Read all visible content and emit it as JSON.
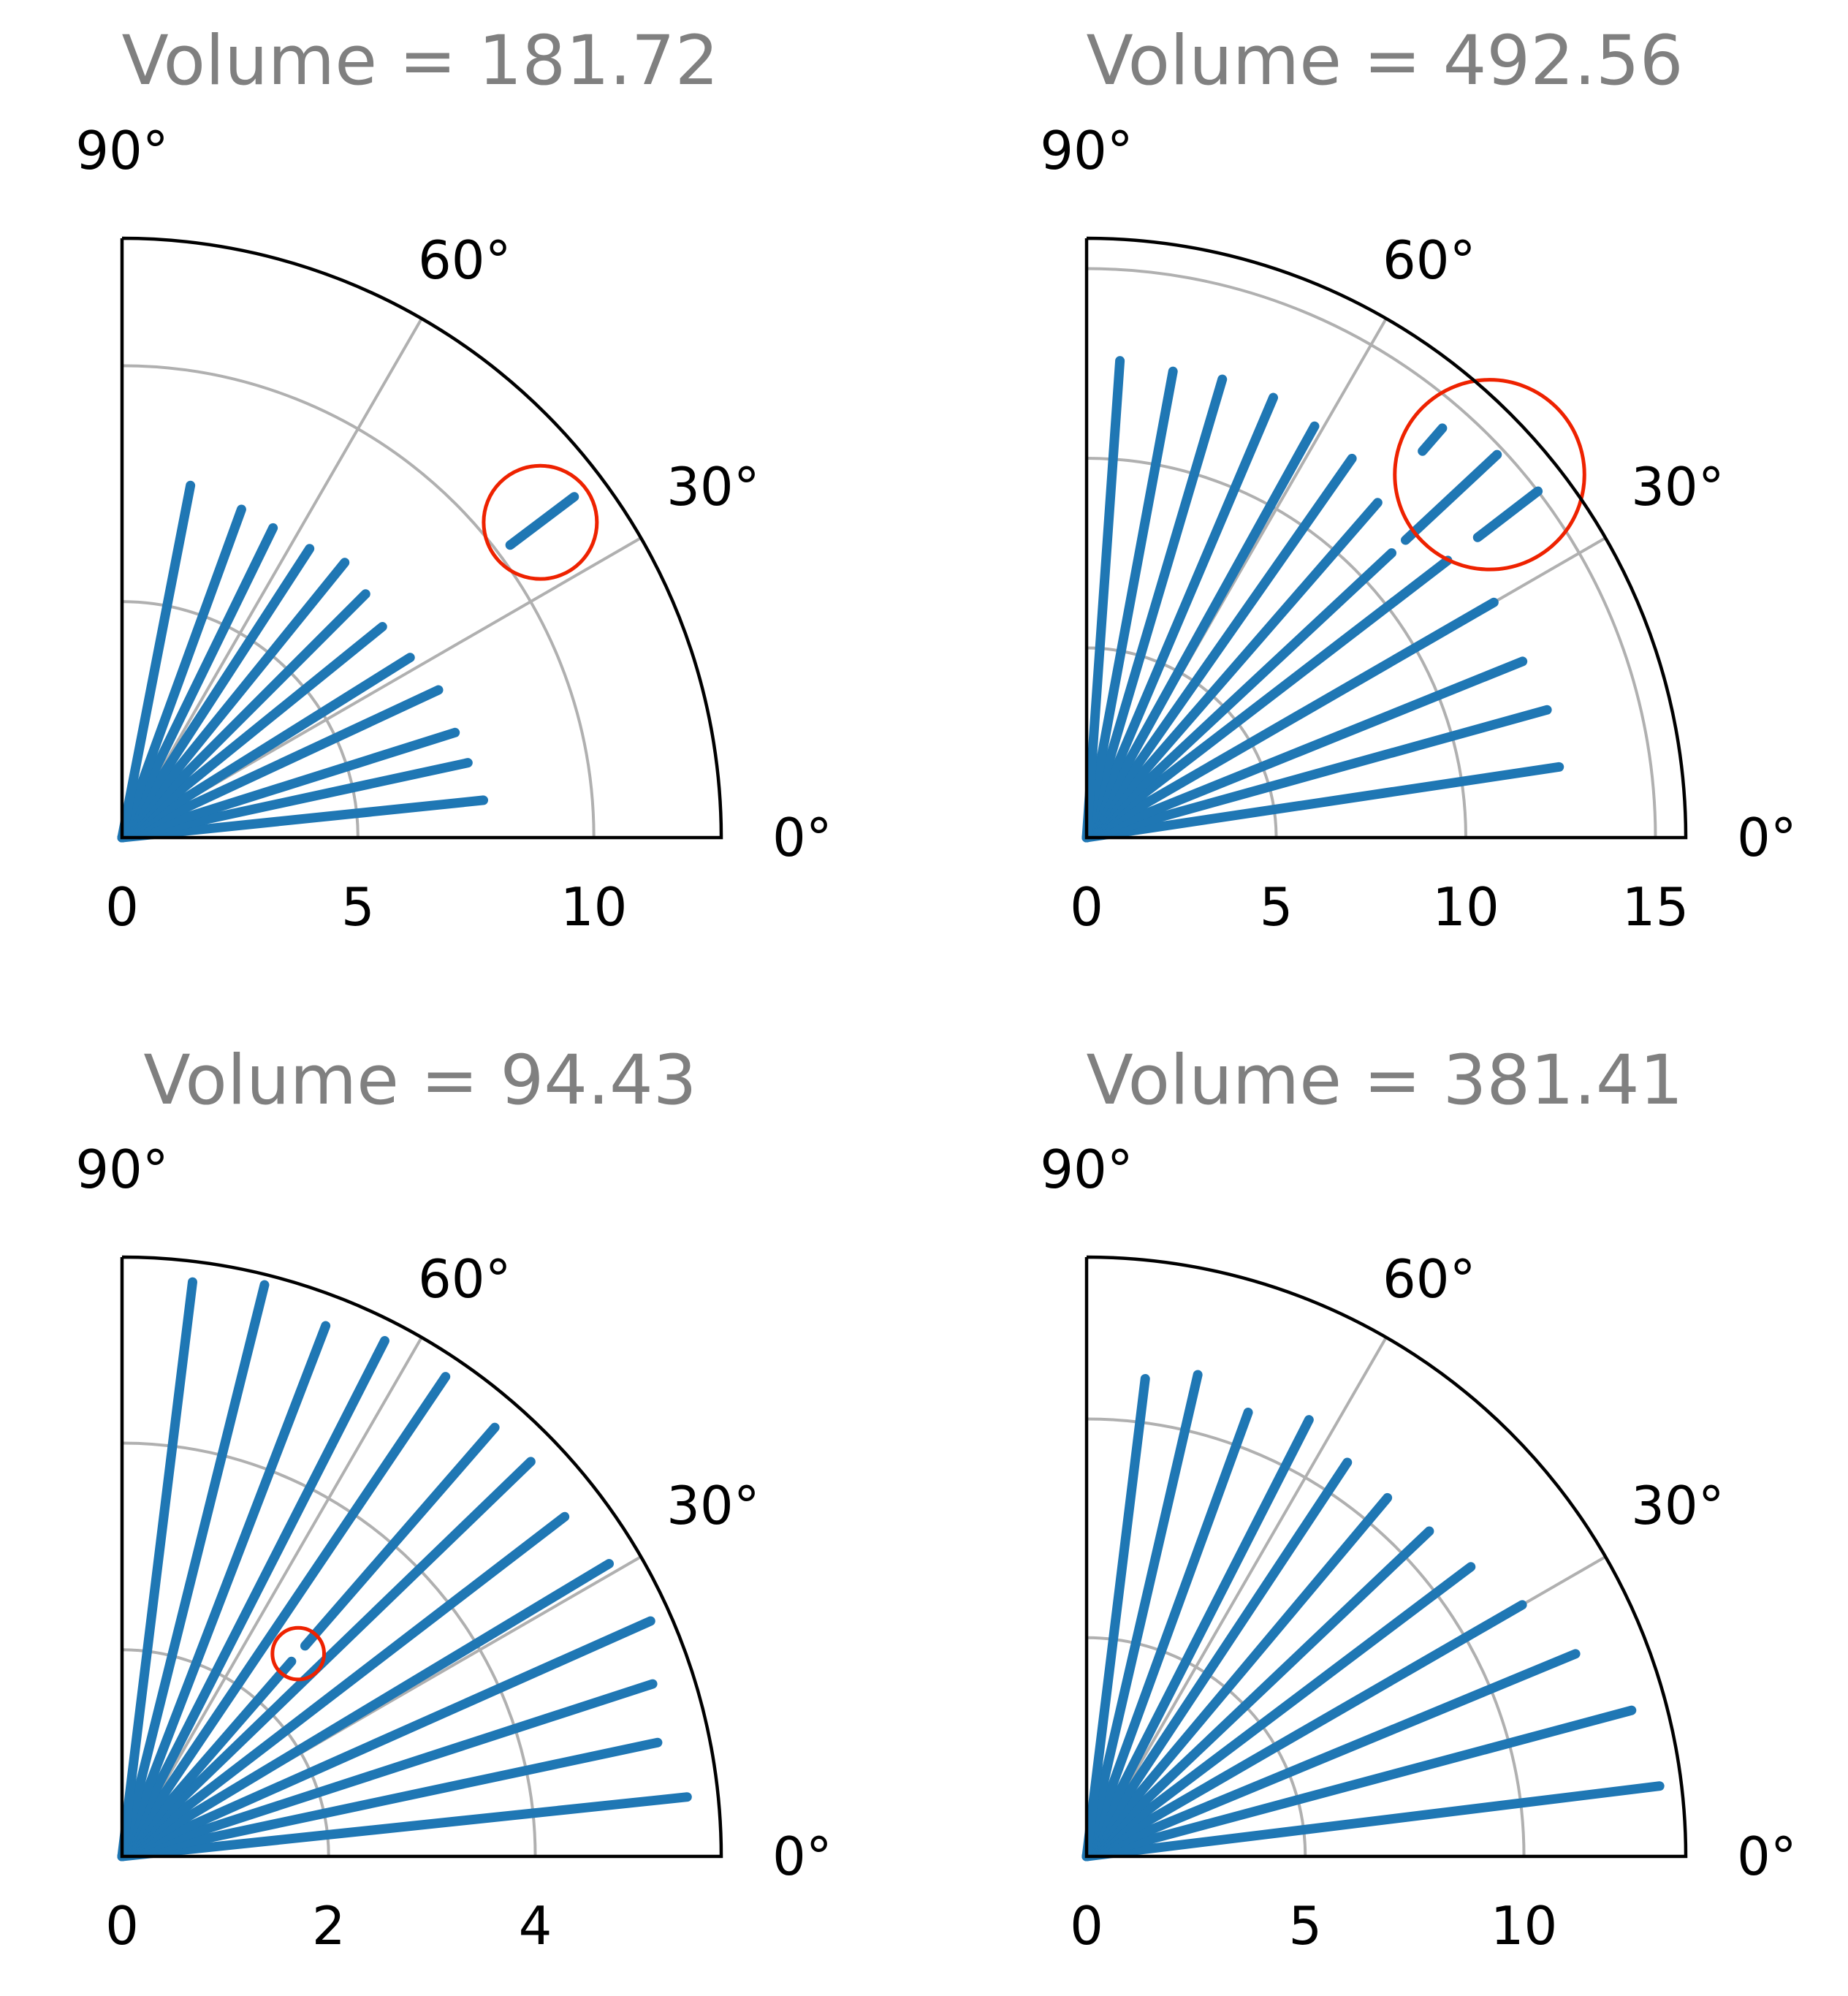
{
  "chart_data": [
    {
      "type": "polar-quadrant",
      "title": "Volume = 181.72",
      "theta_range_deg": [
        0,
        90
      ],
      "theta_ticks": [
        "0°",
        "30°",
        "60°",
        "90°"
      ],
      "r_ticks": [
        "0",
        "5",
        "10"
      ],
      "r_max": 12.7,
      "grid": true,
      "segments": [
        {
          "angle_deg": 5.9,
          "r_start": 0,
          "r_end": 7.7
        },
        {
          "angle_deg": 12.2,
          "r_start": 0,
          "r_end": 7.5
        },
        {
          "angle_deg": 17.5,
          "r_start": 0,
          "r_end": 7.4
        },
        {
          "angle_deg": 25.0,
          "r_start": 0,
          "r_end": 7.4
        },
        {
          "angle_deg": 32.0,
          "r_start": 0,
          "r_end": 7.2
        },
        {
          "angle_deg": 39.0,
          "r_start": 0,
          "r_end": 7.1
        },
        {
          "angle_deg": 45.0,
          "r_start": 0,
          "r_end": 7.3
        },
        {
          "angle_deg": 51.0,
          "r_start": 0,
          "r_end": 7.5
        },
        {
          "angle_deg": 57.0,
          "r_start": 0,
          "r_end": 7.3
        },
        {
          "angle_deg": 64.0,
          "r_start": 0,
          "r_end": 7.3
        },
        {
          "angle_deg": 70.0,
          "r_start": 0,
          "r_end": 7.4
        },
        {
          "angle_deg": 79.0,
          "r_start": 0,
          "r_end": 7.6
        },
        {
          "angle_deg": 37.0,
          "r_start": 10.3,
          "r_end": 12.0
        }
      ],
      "highlight": {
        "angle_deg": 37.0,
        "r": 11.1,
        "radius": 1.2,
        "color": "#ee2200"
      }
    },
    {
      "type": "polar-quadrant",
      "title": "Volume = 492.56",
      "theta_range_deg": [
        0,
        90
      ],
      "theta_ticks": [
        "0°",
        "30°",
        "60°",
        "90°"
      ],
      "r_ticks": [
        "0",
        "5",
        "10",
        "15"
      ],
      "r_max": 15.8,
      "grid": true,
      "segments": [
        {
          "angle_deg": 8.5,
          "r_start": 0,
          "r_end": 12.6
        },
        {
          "angle_deg": 15.5,
          "r_start": 0,
          "r_end": 12.6
        },
        {
          "angle_deg": 22.0,
          "r_start": 0,
          "r_end": 12.4
        },
        {
          "angle_deg": 30.0,
          "r_start": 0,
          "r_end": 12.4
        },
        {
          "angle_deg": 37.5,
          "r_start": 0,
          "r_end": 12.0
        },
        {
          "angle_deg": 43.0,
          "r_start": 0,
          "r_end": 11.0
        },
        {
          "angle_deg": 49.0,
          "r_start": 0,
          "r_end": 11.7
        },
        {
          "angle_deg": 55.0,
          "r_start": 0,
          "r_end": 12.2
        },
        {
          "angle_deg": 61.0,
          "r_start": 0,
          "r_end": 12.4
        },
        {
          "angle_deg": 67.0,
          "r_start": 0,
          "r_end": 12.6
        },
        {
          "angle_deg": 73.5,
          "r_start": 0,
          "r_end": 12.6
        },
        {
          "angle_deg": 79.5,
          "r_start": 0,
          "r_end": 12.5
        },
        {
          "angle_deg": 86.0,
          "r_start": 0,
          "r_end": 12.6
        },
        {
          "angle_deg": 37.5,
          "r_start": 13.0,
          "r_end": 15.0
        },
        {
          "angle_deg": 43.0,
          "r_start": 11.5,
          "r_end": 14.8
        },
        {
          "angle_deg": 49.0,
          "r_start": 13.5,
          "r_end": 14.3
        }
      ],
      "highlight": {
        "angle_deg": 42.0,
        "r": 14.3,
        "radius": 2.5,
        "color": "#ee2200"
      }
    },
    {
      "type": "polar-quadrant",
      "title": "Volume = 94.43",
      "theta_range_deg": [
        0,
        90
      ],
      "theta_ticks": [
        "0°",
        "30°",
        "60°",
        "90°"
      ],
      "r_ticks": [
        "0",
        "2",
        "4"
      ],
      "r_max": 5.8,
      "grid": true,
      "segments": [
        {
          "angle_deg": 6.0,
          "r_start": 0,
          "r_end": 5.5
        },
        {
          "angle_deg": 12.0,
          "r_start": 0,
          "r_end": 5.3
        },
        {
          "angle_deg": 18.0,
          "r_start": 0,
          "r_end": 5.4
        },
        {
          "angle_deg": 24.0,
          "r_start": 0,
          "r_end": 5.6
        },
        {
          "angle_deg": 31.0,
          "r_start": 0,
          "r_end": 5.5
        },
        {
          "angle_deg": 37.5,
          "r_start": 0,
          "r_end": 5.4
        },
        {
          "angle_deg": 44.0,
          "r_start": 0,
          "r_end": 5.5
        },
        {
          "angle_deg": 49.0,
          "r_start": 0,
          "r_end": 2.5
        },
        {
          "angle_deg": 49.0,
          "r_start": 2.7,
          "r_end": 5.5
        },
        {
          "angle_deg": 56.0,
          "r_start": 0,
          "r_end": 5.6
        },
        {
          "angle_deg": 63.0,
          "r_start": 0,
          "r_end": 5.6
        },
        {
          "angle_deg": 69.0,
          "r_start": 0,
          "r_end": 5.5
        },
        {
          "angle_deg": 76.0,
          "r_start": 0,
          "r_end": 5.7
        },
        {
          "angle_deg": 83.0,
          "r_start": 0,
          "r_end": 5.6
        }
      ],
      "highlight": {
        "angle_deg": 49.0,
        "r": 2.6,
        "radius": 0.25,
        "color": "#ee2200"
      }
    },
    {
      "type": "polar-quadrant",
      "title": "Volume = 381.41",
      "theta_range_deg": [
        0,
        90
      ],
      "theta_ticks": [
        "0°",
        "30°",
        "60°",
        "90°"
      ],
      "r_ticks": [
        "0",
        "5",
        "10"
      ],
      "r_max": 13.7,
      "grid": true,
      "segments": [
        {
          "angle_deg": 7.0,
          "r_start": 0,
          "r_end": 13.2
        },
        {
          "angle_deg": 15.0,
          "r_start": 0,
          "r_end": 12.9
        },
        {
          "angle_deg": 22.5,
          "r_start": 0,
          "r_end": 12.1
        },
        {
          "angle_deg": 30.0,
          "r_start": 0,
          "r_end": 11.5
        },
        {
          "angle_deg": 37.0,
          "r_start": 0,
          "r_end": 11.0
        },
        {
          "angle_deg": 43.5,
          "r_start": 0,
          "r_end": 10.8
        },
        {
          "angle_deg": 50.0,
          "r_start": 0,
          "r_end": 10.7
        },
        {
          "angle_deg": 56.5,
          "r_start": 0,
          "r_end": 10.8
        },
        {
          "angle_deg": 63.0,
          "r_start": 0,
          "r_end": 11.2
        },
        {
          "angle_deg": 70.0,
          "r_start": 0,
          "r_end": 10.8
        },
        {
          "angle_deg": 77.0,
          "r_start": 0,
          "r_end": 11.3
        },
        {
          "angle_deg": 83.0,
          "r_start": 0,
          "r_end": 11.0
        }
      ],
      "highlight": null
    }
  ],
  "style": {
    "segment_color": "#1f77b4",
    "grid_color": "#b0b0b0",
    "frame_color": "#000000",
    "title_color": "#808080"
  }
}
